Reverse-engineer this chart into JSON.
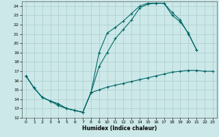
{
  "xlabel": "Humidex (Indice chaleur)",
  "bg_color": "#cce8e8",
  "grid_color": "#aacccc",
  "line_color": "#006666",
  "xlim": [
    -0.5,
    23.5
  ],
  "ylim": [
    12,
    24.5
  ],
  "xticks": [
    0,
    1,
    2,
    3,
    4,
    5,
    6,
    7,
    8,
    9,
    10,
    11,
    12,
    13,
    14,
    15,
    16,
    17,
    18,
    19,
    20,
    21,
    22,
    23
  ],
  "yticks": [
    12,
    13,
    14,
    15,
    16,
    17,
    18,
    19,
    20,
    21,
    22,
    23,
    24
  ],
  "c1_x": [
    0,
    1,
    2,
    3,
    4,
    5,
    6,
    7,
    8,
    9,
    10,
    11,
    12,
    13,
    14,
    15,
    16,
    17,
    18,
    19,
    20,
    21
  ],
  "c1_y": [
    16.5,
    15.2,
    14.2,
    13.8,
    13.3,
    13.0,
    12.8,
    12.6,
    14.7,
    19.0,
    21.1,
    21.7,
    22.4,
    23.2,
    24.0,
    24.3,
    24.3,
    24.3,
    23.3,
    22.5,
    21.0,
    19.3
  ],
  "c2_x": [
    0,
    1,
    2,
    3,
    4,
    5,
    6,
    7,
    8,
    9,
    10,
    11,
    12,
    13,
    14,
    15,
    16,
    17,
    18,
    19,
    20,
    21
  ],
  "c2_y": [
    16.5,
    15.2,
    14.2,
    13.8,
    13.5,
    13.0,
    12.8,
    12.6,
    14.7,
    17.5,
    19.0,
    20.5,
    21.5,
    22.5,
    23.8,
    24.2,
    24.3,
    24.3,
    23.0,
    22.3,
    21.1,
    19.3
  ],
  "c3_x": [
    0,
    1,
    2,
    3,
    4,
    5,
    6,
    7,
    8,
    9,
    10,
    11,
    12,
    13,
    14,
    15,
    16,
    17,
    18,
    19,
    20,
    21,
    22,
    23
  ],
  "c3_y": [
    16.5,
    15.2,
    14.2,
    13.8,
    13.5,
    13.0,
    12.8,
    12.6,
    14.7,
    15.0,
    15.3,
    15.5,
    15.7,
    15.9,
    16.1,
    16.3,
    16.5,
    16.7,
    16.9,
    17.0,
    17.1,
    17.1,
    17.0,
    17.0
  ]
}
